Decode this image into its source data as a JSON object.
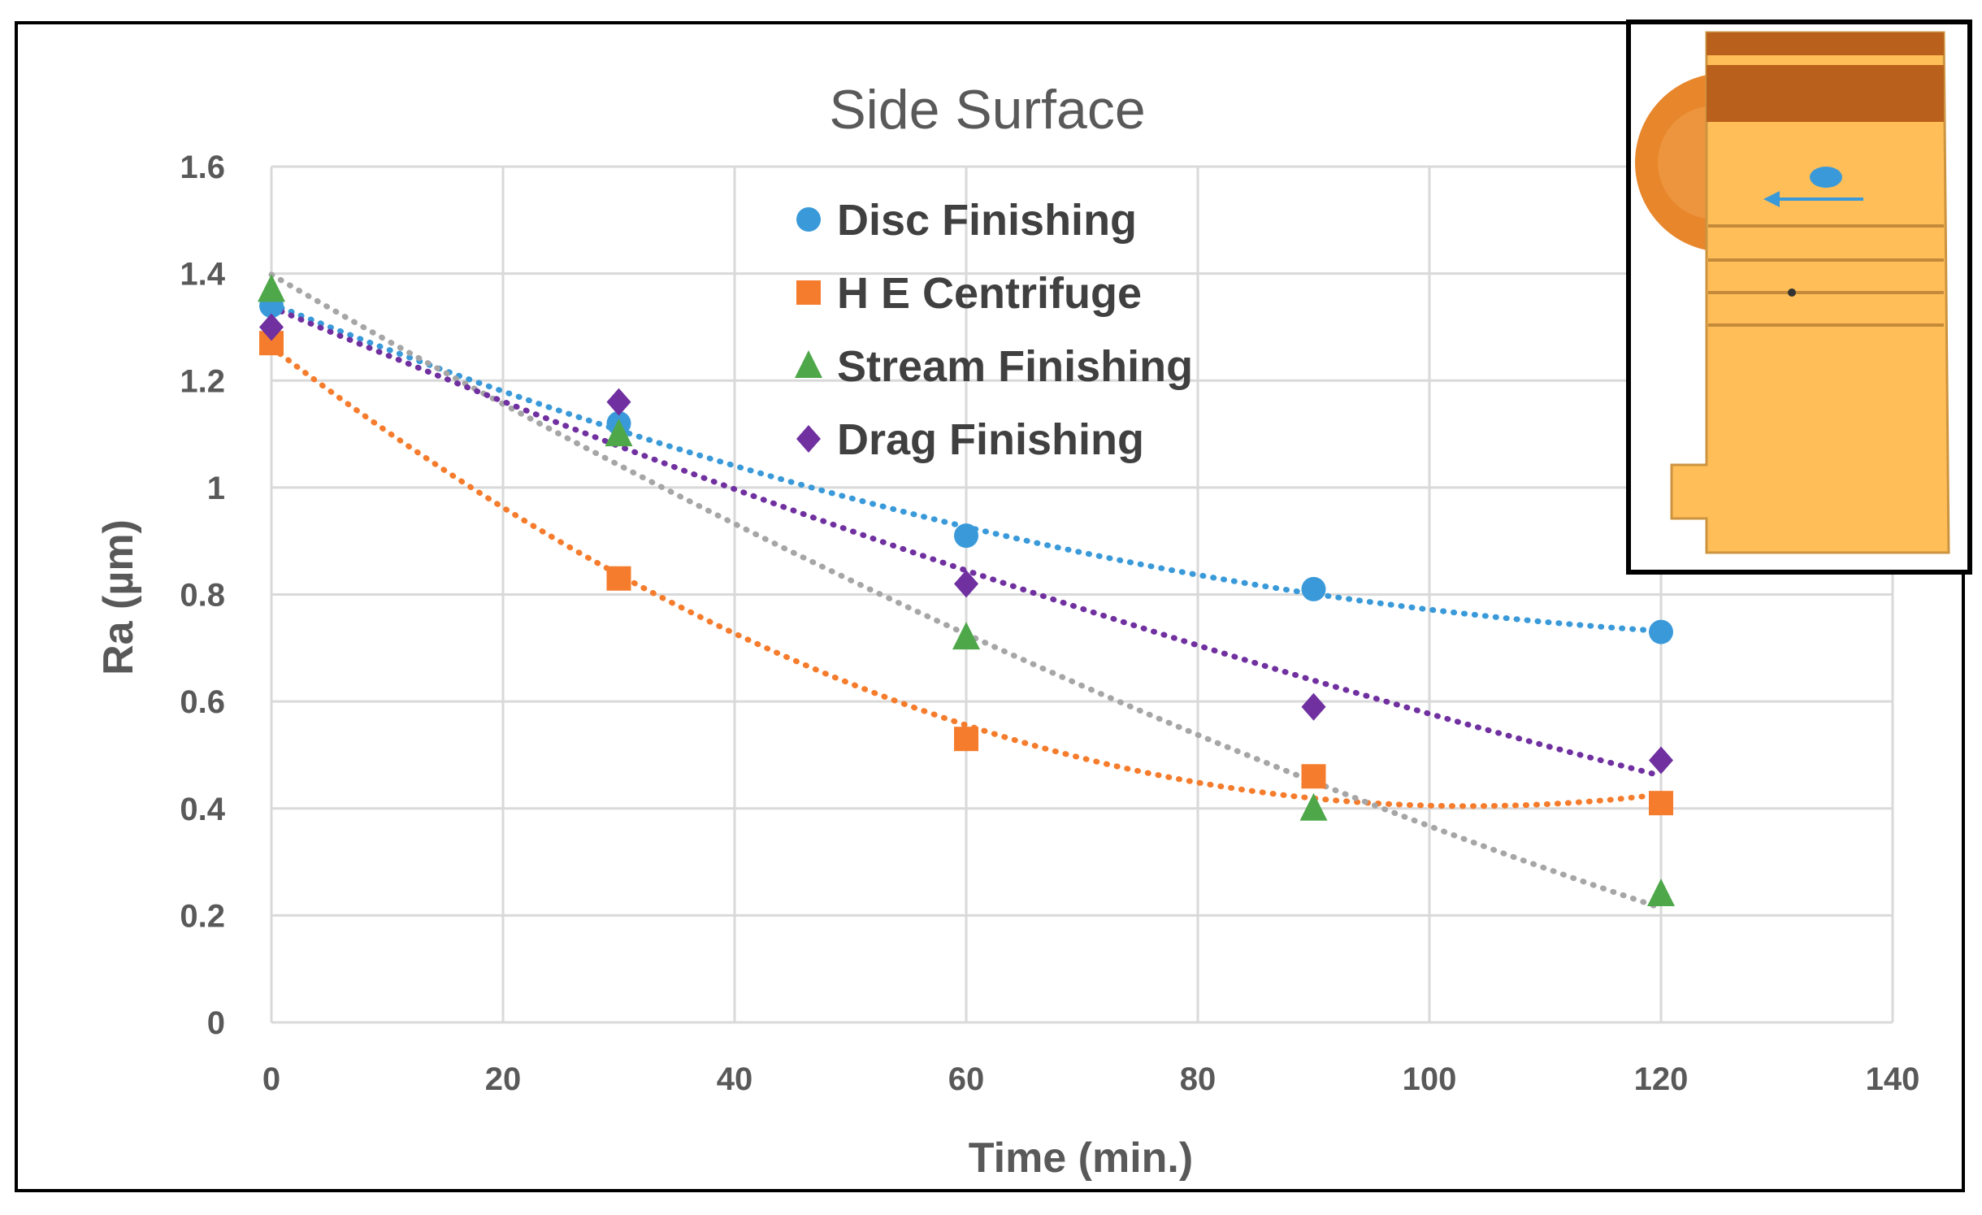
{
  "colors": {
    "disc": "#3a9ad9",
    "centrifuge": "#f57c2c",
    "stream": "#4ea84a",
    "drag": "#7030a0",
    "stream_trend": "#a6a6a6",
    "grid": "#d9d9d9",
    "text": "#595959"
  },
  "chart_data": {
    "type": "scatter",
    "title": "Side Surface",
    "xlabel": "Time (min.)",
    "ylabel": "Ra (µm)",
    "xlim": [
      0,
      140
    ],
    "ylim": [
      0,
      1.6
    ],
    "x_ticks": [
      0,
      20,
      40,
      60,
      80,
      100,
      120,
      140
    ],
    "y_ticks": [
      0,
      0.2,
      0.4,
      0.6,
      0.8,
      1,
      1.2,
      1.4,
      1.6
    ],
    "x_tick_labels": [
      "0",
      "20",
      "40",
      "60",
      "80",
      "100",
      "120",
      "140"
    ],
    "y_tick_labels": [
      "0",
      "0.2",
      "0.4",
      "0.6",
      "0.8",
      "1",
      "1.2",
      "1.4",
      "1.6"
    ],
    "grid": true,
    "legend_position": "top-center",
    "trendlines": "dotted polynomial",
    "series": [
      {
        "name": "Disc Finishing",
        "marker": "circle",
        "color_key": "disc",
        "x": [
          0,
          30,
          60,
          90,
          120
        ],
        "values": [
          1.34,
          1.12,
          0.91,
          0.81,
          0.73
        ]
      },
      {
        "name": "H E Centrifuge",
        "marker": "square",
        "color_key": "centrifuge",
        "x": [
          0,
          30,
          60,
          90,
          120
        ],
        "values": [
          1.27,
          0.83,
          0.53,
          0.46,
          0.41
        ]
      },
      {
        "name": "Stream Finishing",
        "marker": "triangle",
        "color_key": "stream",
        "x": [
          0,
          30,
          60,
          90,
          120
        ],
        "values": [
          1.37,
          1.1,
          0.72,
          0.4,
          0.24
        ]
      },
      {
        "name": "Drag Finishing",
        "marker": "diamond",
        "color_key": "drag",
        "x": [
          0,
          30,
          60,
          90,
          120
        ],
        "values": [
          1.3,
          1.16,
          0.82,
          0.59,
          0.49
        ]
      }
    ],
    "inset": {
      "type": "image",
      "subject": "workpiece side view with inspection point and arrow"
    }
  }
}
